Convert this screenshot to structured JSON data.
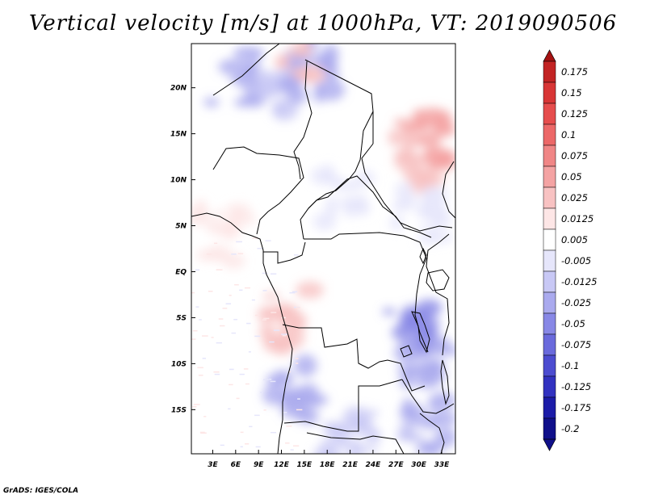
{
  "chart_data": {
    "type": "heatmap",
    "title": "Vertical velocity [m/s] at 1000hPa, VT: 2019090506",
    "variable": "Vertical velocity",
    "units": "m/s",
    "level": "1000hPa",
    "valid_time": "2019090506",
    "x_ticks": [
      "3E",
      "6E",
      "9E",
      "12E",
      "15E",
      "18E",
      "21E",
      "24E",
      "27E",
      "30E",
      "33E"
    ],
    "x_tick_values": [
      3,
      6,
      9,
      12,
      15,
      18,
      21,
      24,
      27,
      30,
      33
    ],
    "y_ticks": [
      "20N",
      "15N",
      "10N",
      "5N",
      "EQ",
      "5S",
      "10S",
      "15S"
    ],
    "y_tick_values": [
      20,
      15,
      10,
      5,
      0,
      -5,
      -10,
      -15
    ],
    "xlim": [
      0.2,
      34.8
    ],
    "ylim": [
      -19.8,
      24.8
    ],
    "colorbar": {
      "labels": [
        "0.175",
        "0.15",
        "0.125",
        "0.1",
        "0.075",
        "0.05",
        "0.025",
        "0.0125",
        "0.005",
        "-0.005",
        "-0.0125",
        "-0.025",
        "-0.05",
        "-0.075",
        "-0.1",
        "-0.125",
        "-0.175",
        "-0.2"
      ],
      "colors": [
        "#a51212",
        "#c22424",
        "#d83636",
        "#e64d4d",
        "#ec6868",
        "#f08686",
        "#f4a3a3",
        "#f8c2c2",
        "#fde6e6",
        "#ffffff",
        "#e6e6fb",
        "#c8c8f5",
        "#aaaaee",
        "#8888e6",
        "#6a6adc",
        "#4c4cd0",
        "#3232c0",
        "#1c1ca8",
        "#10108a"
      ]
    },
    "regions": [
      {
        "lon": 6,
        "lat": 21,
        "value": -0.05
      },
      {
        "lon": 10,
        "lat": 20,
        "value": -0.025
      },
      {
        "lon": 16,
        "lat": 22,
        "value": -0.05
      },
      {
        "lon": 14,
        "lat": 24,
        "value": 0.0125
      },
      {
        "lon": 29,
        "lat": 12,
        "value": 0.0125
      },
      {
        "lon": 31,
        "lat": 14,
        "value": 0.025
      },
      {
        "lon": 30,
        "lat": 6,
        "value": -0.0125
      },
      {
        "lon": 4,
        "lat": 4,
        "value": 0.005
      },
      {
        "lon": 29,
        "lat": -6,
        "value": -0.075
      },
      {
        "lon": 31,
        "lat": -10,
        "value": -0.05
      },
      {
        "lon": 14,
        "lat": -13,
        "value": -0.05
      },
      {
        "lon": 21,
        "lat": -18,
        "value": -0.025
      },
      {
        "lon": 31,
        "lat": -17,
        "value": -0.05
      },
      {
        "lon": 13,
        "lat": -5,
        "value": 0.0125
      },
      {
        "lon": 20,
        "lat": 8,
        "value": -0.0125
      }
    ]
  },
  "credit": "GrADS: IGES/COLA"
}
